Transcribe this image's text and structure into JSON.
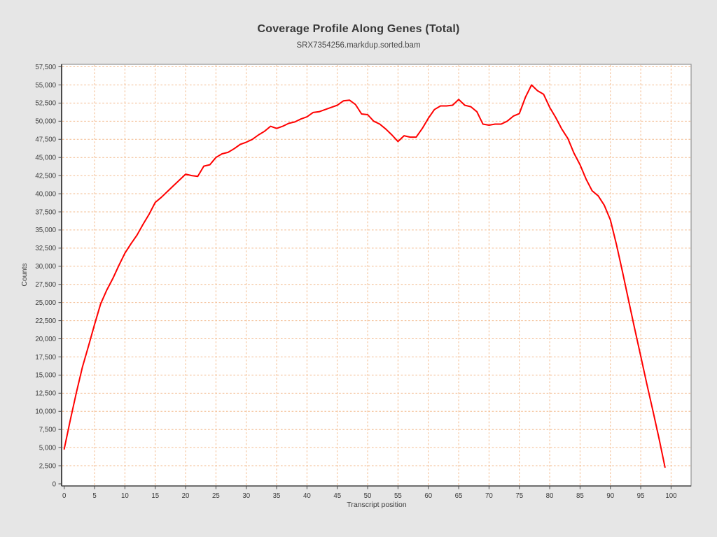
{
  "header": {
    "title": "Coverage Profile Along Genes (Total)",
    "subtitle": "SRX7354256.markdup.sorted.bam"
  },
  "chart_data": {
    "type": "line",
    "title": "Coverage Profile Along Genes (Total)",
    "subtitle": "SRX7354256.markdup.sorted.bam",
    "xlabel": "Transcript position",
    "ylabel": "Counts",
    "xlim": [
      -0.43,
      103.3
    ],
    "ylim": [
      -290,
      57840
    ],
    "x_ticks": [
      0,
      5,
      10,
      15,
      20,
      25,
      30,
      35,
      40,
      45,
      50,
      55,
      60,
      65,
      70,
      75,
      80,
      85,
      90,
      95,
      100
    ],
    "y_ticks": [
      0,
      2500,
      5000,
      7500,
      10000,
      12500,
      15000,
      17500,
      20000,
      22500,
      25000,
      27500,
      30000,
      32500,
      35000,
      37500,
      40000,
      42500,
      45000,
      47500,
      50000,
      52500,
      55000,
      57500
    ],
    "grid": "dashed",
    "legend": "none",
    "colors": {
      "background": "#e6e6e6",
      "plot_background": "#ffffff",
      "plot_border": "#9a9a9a",
      "axis": "#4a4a4a",
      "grid": "#f3bb8e",
      "line": "#ff0000",
      "text": "#3b3b3b"
    },
    "series": [
      {
        "name": "SRX7354256.markdup.sorted.bam",
        "color": "#ff0000",
        "x": {
          "start": 0,
          "step": 1
        },
        "values": [
          4800,
          8800,
          12600,
          16100,
          19000,
          22000,
          24800,
          26700,
          28300,
          30100,
          31800,
          33100,
          34300,
          35800,
          37200,
          38800,
          39500,
          40300,
          41100,
          41900,
          42700,
          42500,
          42400,
          43800,
          44000,
          45000,
          45500,
          45700,
          46200,
          46800,
          47100,
          47500,
          48100,
          48600,
          49300,
          49000,
          49300,
          49700,
          49900,
          50300,
          50600,
          51200,
          51300,
          51600,
          51900,
          52200,
          52800,
          52900,
          52300,
          51000,
          50900,
          50000,
          49600,
          48900,
          48100,
          47200,
          48000,
          47800,
          47800,
          49000,
          50400,
          51600,
          52100,
          52100,
          52200,
          53000,
          52200,
          52000,
          51300,
          49600,
          49450,
          49600,
          49600,
          50000,
          50700,
          51050,
          53300,
          55000,
          54200,
          53700,
          51900,
          50500,
          48900,
          47600,
          45600,
          44000,
          42000,
          40400,
          39700,
          38400,
          36400,
          33000,
          29200,
          25300,
          21400,
          17600,
          13800,
          10100,
          6300,
          2300
        ]
      }
    ]
  }
}
